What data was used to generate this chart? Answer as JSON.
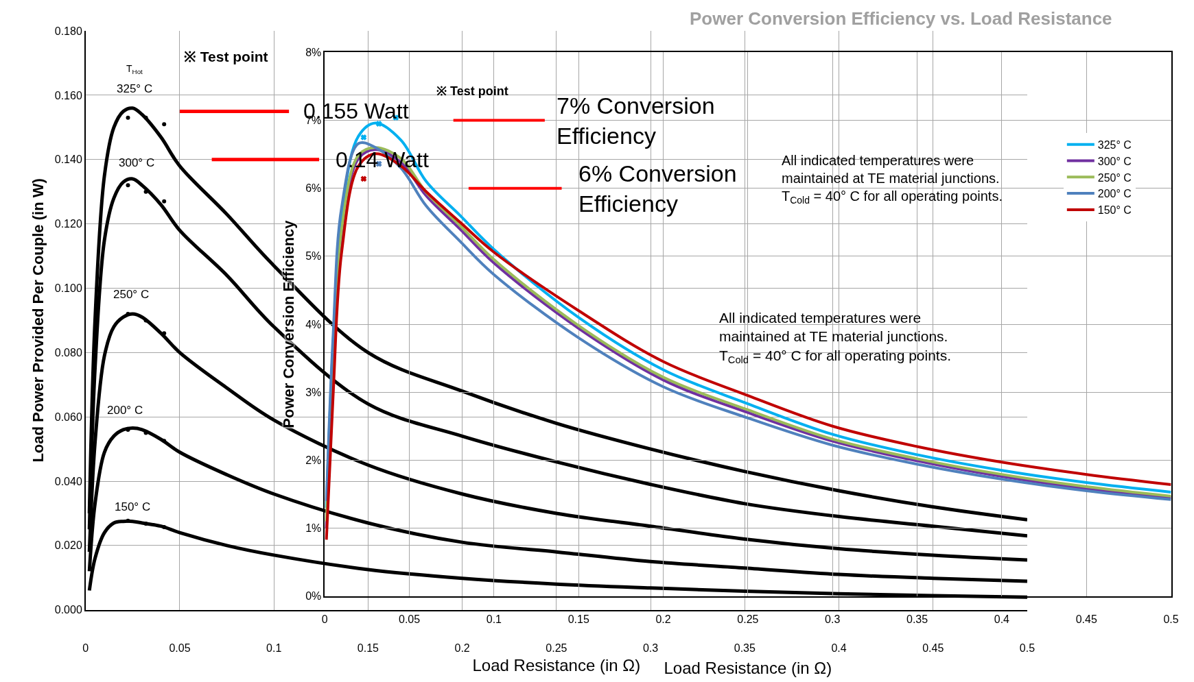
{
  "chart_data": [
    {
      "type": "line",
      "xlabel": "Load Resistance (in Ω)",
      "ylabel": "Load Power Provided Per Couple (in W)",
      "xlim": [
        0,
        0.5
      ],
      "xticks": [
        0,
        0.05,
        0.1,
        0.15,
        0.2,
        0.25,
        0.3,
        0.35,
        0.4,
        0.45,
        0.5
      ],
      "ylim": [
        0,
        0.18
      ],
      "yticks": [
        {
          "value": 0,
          "label": "0.000"
        },
        {
          "value": 0.02,
          "label": "0.020"
        },
        {
          "value": 0.04,
          "label": "0.040"
        },
        {
          "value": 0.06,
          "label": "0.060"
        },
        {
          "value": 0.08,
          "label": "0.080"
        },
        {
          "value": 0.1,
          "label": "0.100"
        },
        {
          "value": 0.12,
          "label": "0.120"
        },
        {
          "value": 0.14,
          "label": "0.140"
        },
        {
          "value": 0.16,
          "label": "0.160"
        },
        {
          "value": 0.18,
          "label": "0.180"
        }
      ],
      "grid": true,
      "legend": false,
      "line_style": "solid",
      "x": [
        0.002,
        0.005,
        0.01,
        0.015,
        0.02,
        0.025,
        0.03,
        0.04,
        0.05,
        0.075,
        0.1,
        0.15,
        0.2,
        0.25,
        0.3,
        0.35,
        0.4,
        0.45,
        0.5
      ],
      "series": [
        {
          "color": "#000000",
          "values": [
            0.03,
            0.09,
            0.135,
            0.15,
            0.155,
            0.156,
            0.154,
            0.147,
            0.138,
            0.123,
            0.107,
            0.08,
            0.068,
            0.058,
            0.05,
            0.043,
            0.037,
            0.032,
            0.028
          ]
        },
        {
          "color": "#000000",
          "values": [
            0.025,
            0.075,
            0.115,
            0.128,
            0.133,
            0.134,
            0.132,
            0.126,
            0.118,
            0.104,
            0.088,
            0.064,
            0.054,
            0.046,
            0.039,
            0.033,
            0.029,
            0.026,
            0.023
          ]
        },
        {
          "color": "#000000",
          "values": [
            0.018,
            0.052,
            0.079,
            0.088,
            0.091,
            0.092,
            0.091,
            0.086,
            0.08,
            0.069,
            0.059,
            0.045,
            0.036,
            0.03,
            0.026,
            0.022,
            0.019,
            0.017,
            0.0155
          ]
        },
        {
          "color": "#000000",
          "values": [
            0.012,
            0.033,
            0.049,
            0.054,
            0.056,
            0.0565,
            0.056,
            0.053,
            0.049,
            0.042,
            0.036,
            0.027,
            0.021,
            0.018,
            0.015,
            0.013,
            0.011,
            0.0098,
            0.0089
          ]
        },
        {
          "color": "#000000",
          "values": [
            0.006,
            0.016,
            0.024,
            0.027,
            0.0275,
            0.0275,
            0.027,
            0.026,
            0.024,
            0.02,
            0.017,
            0.0125,
            0.0098,
            0.008,
            0.0068,
            0.0058,
            0.005,
            0.0044,
            0.0039
          ]
        },
        {
          "type": "scatter",
          "marker": "circle",
          "color": "#000000",
          "x": [
            0.0225,
            0.032,
            0.0417,
            0.0225,
            0.032,
            0.0417,
            0.0225,
            0.032,
            0.0417,
            0.0225,
            0.032,
            0.0417,
            0.0225,
            0.032,
            0.0417
          ],
          "values": [
            0.153,
            0.153,
            0.151,
            0.132,
            0.13,
            0.127,
            0.092,
            0.09,
            0.086,
            0.056,
            0.055,
            0.0525,
            0.0277,
            0.0268,
            0.0257
          ]
        },
        {
          "color": "#ff0000",
          "x": [
            0.05,
            0.108
          ],
          "values": [
            0.155,
            0.155
          ]
        },
        {
          "color": "#ff0000",
          "x": [
            0.067,
            0.124
          ],
          "values": [
            0.14,
            0.14
          ]
        }
      ],
      "annotations": [
        "T$_{Hot}$",
        "325° C",
        "300° C",
        "250° C",
        "200° C",
        "150° C",
        "0.155 Watt",
        "0.14 Watt",
        "※ Test point",
        "All indicated temperatures were\nmaintained at TE material junctions.\nT$_{Cold}$ = 40° C for all operating points."
      ]
    },
    {
      "type": "line",
      "xlabel": "Load Resistance (in Ω)",
      "ylabel": "Power Conversion Efficiency",
      "xlim": [
        0,
        0.5
      ],
      "xticks": [
        0,
        0.05,
        0.1,
        0.15,
        0.2,
        0.25,
        0.3,
        0.35,
        0.4,
        0.45,
        0.5
      ],
      "ylim": [
        0,
        8
      ],
      "yticks": [
        {
          "value": 0,
          "label": "0%"
        },
        {
          "value": 1,
          "label": "1%"
        },
        {
          "value": 2,
          "label": "2%"
        },
        {
          "value": 3,
          "label": "3%"
        },
        {
          "value": 4,
          "label": "4%"
        },
        {
          "value": 5,
          "label": "5%"
        },
        {
          "value": 6,
          "label": "6%"
        },
        {
          "value": 7,
          "label": "7%"
        },
        {
          "value": 8,
          "label": "8%"
        }
      ],
      "grid": true,
      "legend": "top right",
      "line_style": "solid",
      "x": [
        0.001,
        0.005,
        0.01,
        0.02,
        0.03,
        0.045,
        0.06,
        0.08,
        0.1,
        0.15,
        0.2,
        0.25,
        0.3,
        0.35,
        0.4,
        0.45,
        0.5
      ],
      "series": [
        {
          "name": "325° C",
          "color": "#00b0f0",
          "values": [
            1.3,
            3.74,
            5.61,
            6.77,
            6.96,
            6.71,
            6.1,
            5.6,
            5.1,
            4.1,
            3.33,
            2.83,
            2.38,
            2.08,
            1.85,
            1.67,
            1.53
          ]
        },
        {
          "name": "300° C",
          "color": "#7030a0",
          "values": [
            1.0,
            3.3,
            5.28,
            6.44,
            6.57,
            6.38,
            5.89,
            5.4,
            4.9,
            3.94,
            3.18,
            2.7,
            2.28,
            1.99,
            1.76,
            1.58,
            1.45
          ]
        },
        {
          "name": "250° C",
          "color": "#9bbb59",
          "values": [
            1.1,
            3.4,
            5.4,
            6.49,
            6.6,
            6.44,
            5.94,
            5.45,
            4.95,
            3.98,
            3.22,
            2.74,
            2.31,
            2.02,
            1.79,
            1.61,
            1.47
          ]
        },
        {
          "name": "200° C",
          "color": "#4f81bd",
          "values": [
            1.4,
            3.85,
            5.72,
            6.66,
            6.6,
            6.3,
            5.74,
            5.22,
            4.73,
            3.8,
            3.08,
            2.62,
            2.22,
            1.94,
            1.72,
            1.55,
            1.42
          ]
        },
        {
          "name": "150° C",
          "color": "#c00000",
          "values": [
            0.83,
            2.97,
            5.06,
            6.33,
            6.51,
            6.33,
            5.95,
            5.5,
            5.06,
            4.2,
            3.45,
            2.95,
            2.5,
            2.2,
            1.97,
            1.79,
            1.64
          ]
        },
        {
          "type": "scatter",
          "marker": "cross",
          "colors": [
            "#00b0f0",
            "#00b0f0",
            "#00b0f0",
            "#4f81bd",
            "#c00000"
          ],
          "x": [
            0.023,
            0.032,
            0.042,
            0.032,
            0.023
          ],
          "values": [
            6.75,
            6.95,
            7.04,
            6.36,
            6.14
          ]
        },
        {
          "color": "#ff0000",
          "x": [
            0.076,
            0.13
          ],
          "values": [
            7.0,
            7.0
          ]
        },
        {
          "color": "#ff0000",
          "x": [
            0.085,
            0.14
          ],
          "values": [
            6.0,
            6.0
          ]
        }
      ],
      "annotations": [
        "7% Conversion\nEfficiency",
        "6% Conversion\nEfficiency",
        "Power Conversion Efficiency vs. Load Resistance",
        "※ Test point",
        "All indicated temperatures were\nmaintained at TE material junctions.\nT$_{Cold}$ = 40° C for all operating points."
      ]
    }
  ]
}
